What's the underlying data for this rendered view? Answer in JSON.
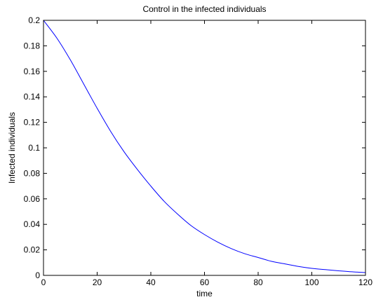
{
  "chart_data": {
    "type": "line",
    "title": "Control in the infected individuals",
    "xlabel": "time",
    "ylabel": "Infected individuals",
    "xlim": [
      0,
      120
    ],
    "ylim": [
      0,
      0.2
    ],
    "x_ticks": [
      0,
      20,
      40,
      60,
      80,
      100,
      120
    ],
    "y_ticks": [
      0,
      0.02,
      0.04,
      0.06,
      0.08,
      0.1,
      0.12,
      0.14,
      0.16,
      0.18,
      0.2
    ],
    "x_tick_labels": [
      "0",
      "20",
      "40",
      "60",
      "80",
      "100",
      "120"
    ],
    "y_tick_labels": [
      "0",
      "0.02",
      "0.04",
      "0.06",
      "0.08",
      "0.1",
      "0.12",
      "0.14",
      "0.16",
      "0.18",
      "0.2"
    ],
    "grid": false,
    "series": [
      {
        "color": "#0000ff",
        "x": [
          0,
          5,
          10,
          15,
          20,
          25,
          30,
          35,
          40,
          45,
          50,
          55,
          60,
          65,
          70,
          75,
          80,
          85,
          90,
          95,
          100,
          105,
          110,
          115,
          120
        ],
        "y": [
          0.2,
          0.186,
          0.169,
          0.15,
          0.131,
          0.113,
          0.097,
          0.083,
          0.07,
          0.058,
          0.048,
          0.039,
          0.032,
          0.026,
          0.021,
          0.017,
          0.014,
          0.011,
          0.009,
          0.007,
          0.0055,
          0.0045,
          0.0036,
          0.0028,
          0.0022
        ]
      }
    ]
  }
}
